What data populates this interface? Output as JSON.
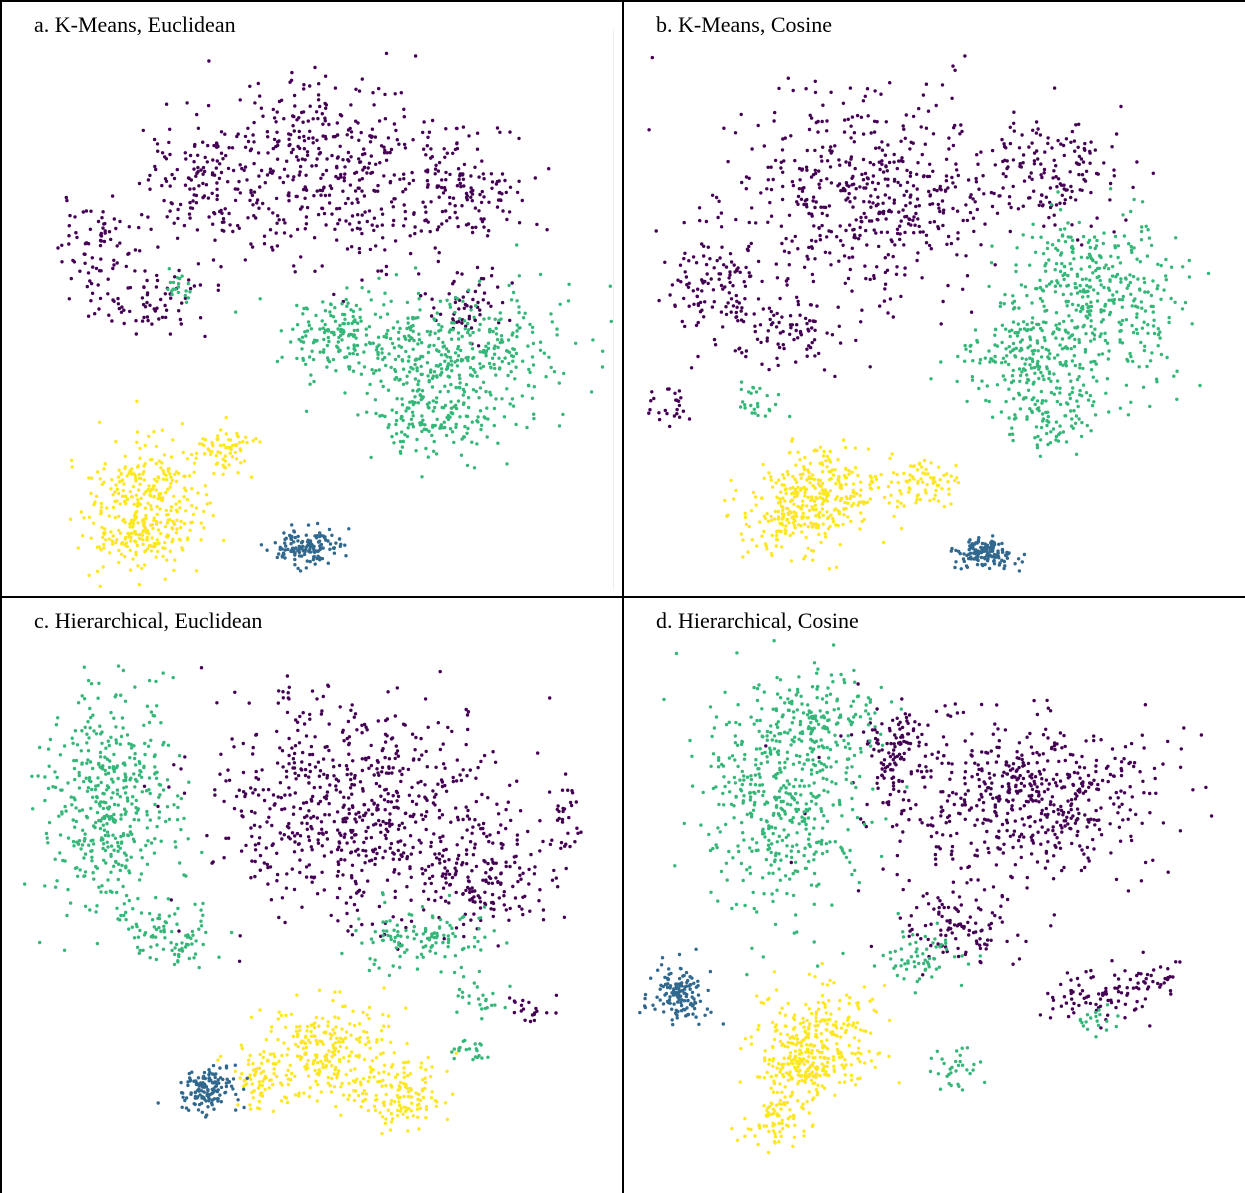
{
  "colors": {
    "cluster_purple": "#440154",
    "cluster_blue": "#31688e",
    "cluster_green": "#35b779",
    "cluster_yellow": "#fde725"
  },
  "chart_data": [
    {
      "type": "scatter",
      "title": "a. K-Means, Euclidean",
      "xlabel": "",
      "ylabel": "",
      "grid": false,
      "legend": "none",
      "clusters": [
        {
          "color": "#440154",
          "blobs": [
            [
              320,
              170,
              130,
              95
            ],
            [
              200,
              185,
              60,
              55
            ],
            [
              460,
              190,
              70,
              55
            ],
            [
              95,
              245,
              45,
              50
            ],
            [
              150,
              300,
              55,
              35
            ],
            [
              470,
              300,
              45,
              35
            ]
          ]
        },
        {
          "color": "#35b779",
          "blobs": [
            [
              450,
              350,
              115,
              65
            ],
            [
              330,
              330,
              55,
              40
            ],
            [
              430,
              420,
              60,
              40
            ],
            [
              175,
              285,
              18,
              15
            ]
          ]
        },
        {
          "color": "#fde725",
          "blobs": [
            [
              145,
              490,
              60,
              55
            ],
            [
              135,
              535,
              50,
              30
            ],
            [
              220,
              445,
              35,
              25
            ]
          ]
        },
        {
          "color": "#31688e",
          "blobs": [
            [
              305,
              545,
              35,
              18
            ]
          ]
        }
      ]
    },
    {
      "type": "scatter",
      "title": "b. K-Means, Cosine",
      "xlabel": "",
      "ylabel": "",
      "grid": false,
      "legend": "none",
      "clusters": [
        {
          "color": "#440154",
          "blobs": [
            [
              240,
              190,
              130,
              100
            ],
            [
              90,
              280,
              55,
              55
            ],
            [
              430,
              170,
              70,
              55
            ],
            [
              160,
              330,
              60,
              35
            ],
            [
              45,
              400,
              25,
              25
            ]
          ]
        },
        {
          "color": "#35b779",
          "blobs": [
            [
              470,
              300,
              90,
              90
            ],
            [
              400,
              360,
              70,
              50
            ],
            [
              430,
              420,
              45,
              30
            ],
            [
              130,
              400,
              25,
              20
            ]
          ]
        },
        {
          "color": "#fde725",
          "blobs": [
            [
              200,
              490,
              70,
              45
            ],
            [
              165,
              520,
              45,
              35
            ],
            [
              300,
              480,
              35,
              25
            ]
          ]
        },
        {
          "color": "#31688e",
          "blobs": [
            [
              360,
              550,
              30,
              16
            ]
          ]
        }
      ]
    },
    {
      "type": "scatter",
      "title": "c. Hierarchical, Euclidean",
      "xlabel": "",
      "ylabel": "",
      "grid": false,
      "legend": "none",
      "clusters": [
        {
          "color": "#440154",
          "blobs": [
            [
              350,
              210,
              140,
              110
            ],
            [
              480,
              280,
              70,
              60
            ],
            [
              530,
              415,
              25,
              18
            ],
            [
              560,
              220,
              18,
              40
            ]
          ]
        },
        {
          "color": "#35b779",
          "blobs": [
            [
              110,
              200,
              65,
              110
            ],
            [
              170,
              340,
              45,
              30
            ],
            [
              420,
              340,
              65,
              30
            ],
            [
              480,
              400,
              25,
              15
            ],
            [
              470,
              455,
              22,
              15
            ]
          ]
        },
        {
          "color": "#fde725",
          "blobs": [
            [
              330,
              455,
              70,
              50
            ],
            [
              400,
              500,
              45,
              35
            ],
            [
              260,
              480,
              30,
              30
            ]
          ]
        },
        {
          "color": "#31688e",
          "blobs": [
            [
              205,
              490,
              30,
              20
            ]
          ]
        }
      ]
    },
    {
      "type": "scatter",
      "title": "d. Hierarchical, Cosine",
      "xlabel": "",
      "ylabel": "",
      "grid": false,
      "legend": "none",
      "clusters": [
        {
          "color": "#440154",
          "blobs": [
            [
              400,
              200,
              150,
              80
            ],
            [
              330,
              330,
              60,
              35
            ],
            [
              470,
              400,
              55,
              30
            ],
            [
              530,
              380,
              30,
              20
            ],
            [
              270,
              150,
              40,
              50
            ]
          ]
        },
        {
          "color": "#35b779",
          "blobs": [
            [
              160,
              200,
              80,
              115
            ],
            [
              200,
              120,
              55,
              45
            ],
            [
              300,
              360,
              40,
              30
            ],
            [
              330,
              470,
              25,
              25
            ],
            [
              470,
              420,
              20,
              15
            ]
          ]
        },
        {
          "color": "#fde725",
          "blobs": [
            [
              190,
              440,
              60,
              55
            ],
            [
              155,
              520,
              35,
              30
            ],
            [
              180,
              470,
              40,
              35
            ]
          ]
        },
        {
          "color": "#31688e",
          "blobs": [
            [
              55,
              395,
              25,
              30
            ]
          ]
        }
      ]
    }
  ]
}
